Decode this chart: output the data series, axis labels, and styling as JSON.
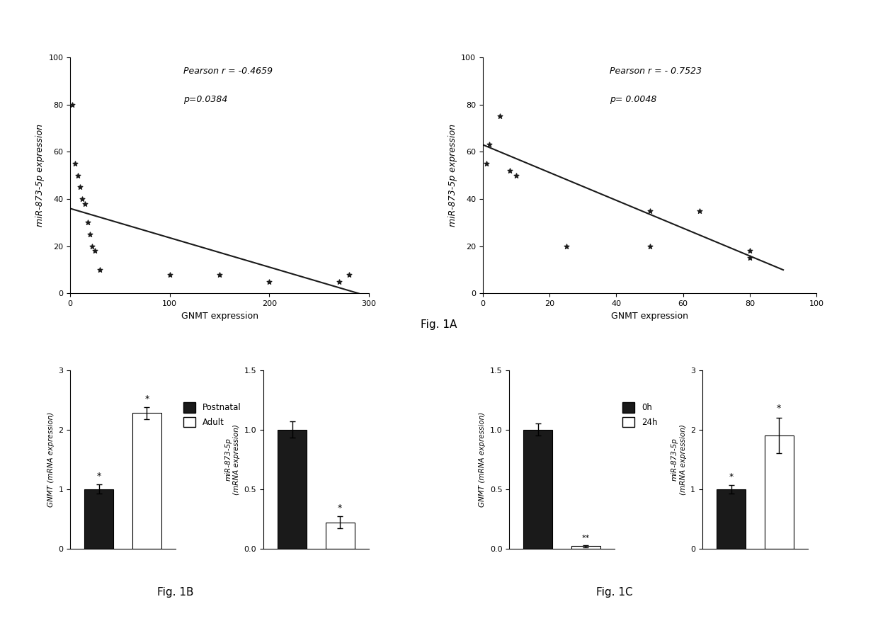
{
  "scatter1": {
    "x": [
      2,
      5,
      8,
      10,
      12,
      15,
      18,
      20,
      22,
      25,
      30,
      100,
      150,
      200,
      270,
      280
    ],
    "y": [
      80,
      55,
      50,
      45,
      40,
      38,
      30,
      25,
      20,
      18,
      10,
      8,
      8,
      5,
      5,
      8
    ],
    "trendline_x": [
      0,
      290
    ],
    "trendline_y": [
      36,
      0
    ],
    "xlabel": "GNMT expression",
    "ylabel": "miR-873-5p expression",
    "xlim": [
      0,
      300
    ],
    "ylim": [
      0,
      100
    ],
    "xticks": [
      0,
      100,
      200,
      300
    ],
    "yticks": [
      0,
      20,
      40,
      60,
      80,
      100
    ],
    "annot_line1": "Pearson r = -0.4659",
    "annot_line2": "p=0.0384"
  },
  "scatter2": {
    "x": [
      1,
      2,
      5,
      8,
      10,
      25,
      50,
      50,
      65,
      80,
      80
    ],
    "y": [
      55,
      63,
      75,
      52,
      50,
      20,
      35,
      20,
      35,
      15,
      18
    ],
    "trendline_x": [
      0,
      90
    ],
    "trendline_y": [
      63,
      10
    ],
    "xlabel": "GNMT expression",
    "ylabel": "miR-873-5p expression",
    "xlim": [
      0,
      100
    ],
    "ylim": [
      0,
      100
    ],
    "xticks": [
      0,
      20,
      40,
      60,
      80,
      100
    ],
    "yticks": [
      0,
      20,
      40,
      60,
      80,
      100
    ],
    "annot_line1": "Pearson r = - 0.7523",
    "annot_line2": "p= 0.0048"
  },
  "bar1": {
    "values": [
      1.0,
      2.28
    ],
    "errors": [
      0.08,
      0.1
    ],
    "colors": [
      "#1a1a1a",
      "#ffffff"
    ],
    "ylabel": "GNMT (mRNA expression)",
    "ylim": [
      0,
      3
    ],
    "yticks": [
      0,
      1,
      2,
      3
    ],
    "legend_labels": [
      "Postnatal",
      "Adult"
    ],
    "legend_colors": [
      "#1a1a1a",
      "#ffffff"
    ],
    "star1": "*",
    "star2": "*"
  },
  "bar2": {
    "values": [
      1.0,
      0.22
    ],
    "errors": [
      0.07,
      0.05
    ],
    "colors": [
      "#1a1a1a",
      "#ffffff"
    ],
    "ylabel": "miR-873-5p\n(mRNA expression)",
    "ylim": [
      0,
      1.5
    ],
    "yticks": [
      0.0,
      0.5,
      1.0,
      1.5
    ],
    "star2": "*"
  },
  "bar3": {
    "values": [
      1.0,
      0.02
    ],
    "errors": [
      0.05,
      0.01
    ],
    "colors": [
      "#1a1a1a",
      "#ffffff"
    ],
    "ylabel": "GNMT (mRNA expression)",
    "ylim": [
      0,
      1.5
    ],
    "yticks": [
      0.0,
      0.5,
      1.0,
      1.5
    ],
    "legend_labels": [
      "0h",
      "24h"
    ],
    "legend_colors": [
      "#1a1a1a",
      "#ffffff"
    ],
    "star2": "**"
  },
  "bar4": {
    "values": [
      1.0,
      1.9
    ],
    "errors": [
      0.07,
      0.3
    ],
    "colors": [
      "#1a1a1a",
      "#ffffff"
    ],
    "ylabel": "miR-873-5p\n(mRNA expression)",
    "ylim": [
      0,
      3
    ],
    "yticks": [
      0,
      1,
      2,
      3
    ],
    "star1": "*",
    "star2": "*"
  },
  "fig_labels": {
    "fig1A": "Fig. 1A",
    "fig1B": "Fig. 1B",
    "fig1C": "Fig. 1C"
  },
  "bg_color": "#ffffff",
  "marker_color": "#1a1a1a",
  "line_color": "#1a1a1a"
}
